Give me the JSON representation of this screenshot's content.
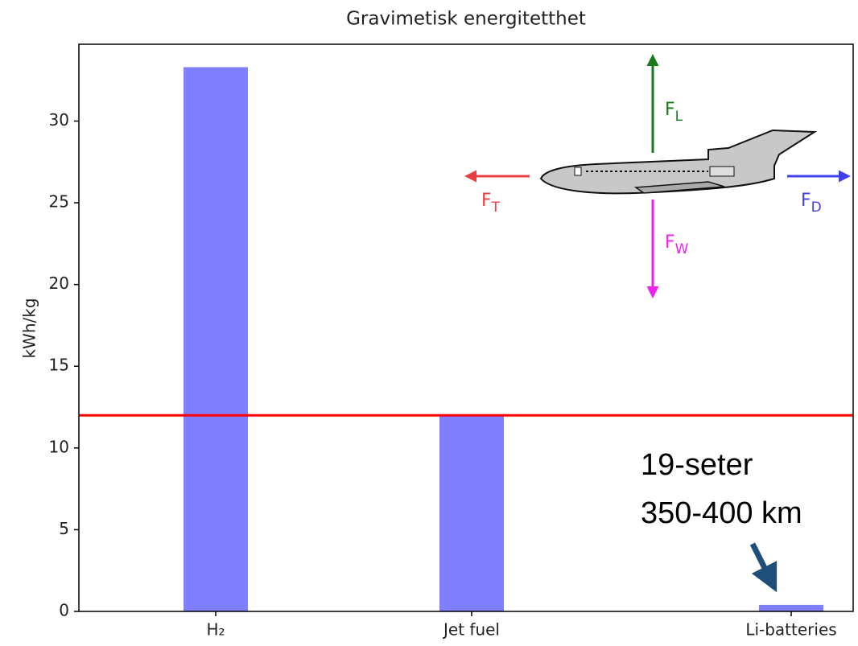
{
  "chart_data": {
    "type": "bar",
    "title": "Gravimetisk energitetthet",
    "y_label": "kWh/kg",
    "categories": [
      "H₂",
      "Jet fuel",
      "Li-batteries"
    ],
    "values": [
      33.3,
      12.0,
      0.4
    ],
    "color": "#8080ff",
    "ylim": [
      0,
      34.7
    ],
    "yticks": [
      0,
      5,
      10,
      15,
      20,
      25,
      30
    ],
    "hline": {
      "value": 12,
      "color": "#ff0000"
    },
    "annotations": [
      "19-seter",
      "350-400 km"
    ],
    "forces": [
      {
        "main": "F",
        "sub": "L",
        "color": "#1a7a1a"
      },
      {
        "main": "F",
        "sub": "T",
        "color": "#e84040"
      },
      {
        "main": "F",
        "sub": "D",
        "color": "#4040ee"
      },
      {
        "main": "F",
        "sub": "W",
        "color": "#ee22ee"
      }
    ]
  }
}
